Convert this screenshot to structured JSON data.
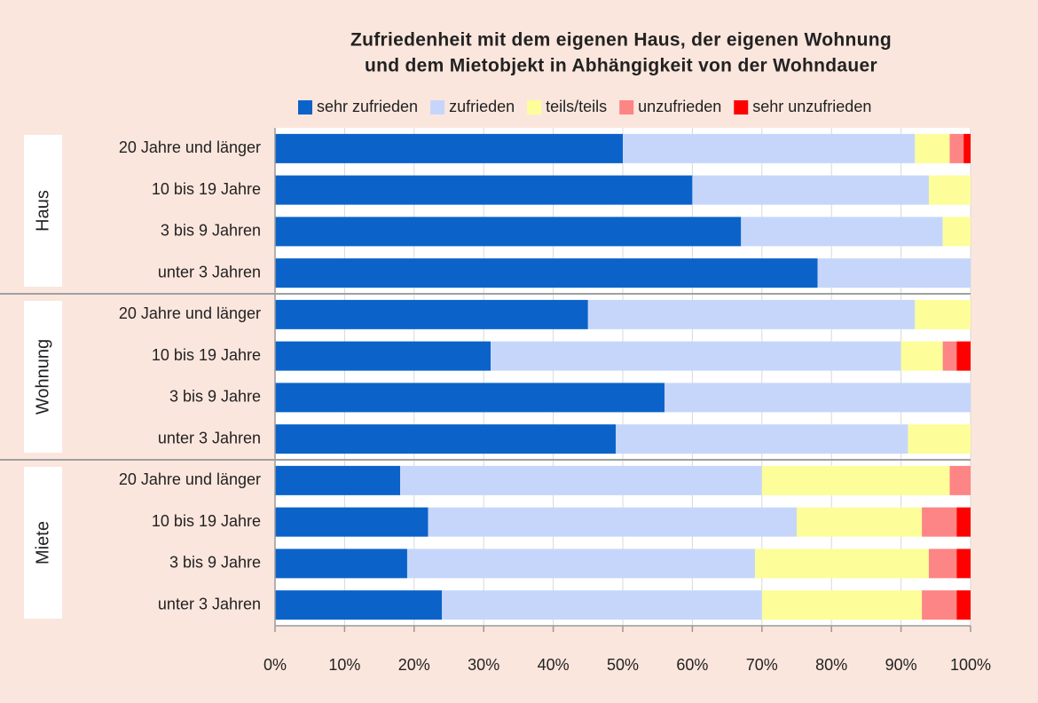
{
  "chart_data": {
    "type": "stacked_bar_horizontal",
    "title": [
      "Zufriedenheit mit dem eigenen Haus, der eigenen Wohnung",
      "und dem Mietobjekt in Abhängigkeit von der Wohndauer"
    ],
    "groups": [
      "Haus",
      "Wohnung",
      "Miete"
    ],
    "categories": [
      "20 Jahre und länger",
      "10 bis 19 Jahre",
      "3 bis 9 Jahren",
      "unter 3 Jahren",
      "20 Jahre und länger",
      "10 bis 19 Jahre",
      "3 bis 9 Jahre",
      "unter 3 Jahren",
      "20 Jahre und länger",
      "10 bis 19 Jahre",
      "3 bis 9 Jahre",
      "unter 3 Jahren"
    ],
    "series": [
      {
        "name": "sehr zufrieden",
        "color": "#0b63c9",
        "values": [
          50,
          60,
          67,
          78,
          45,
          31,
          56,
          49,
          18,
          22,
          19,
          24
        ]
      },
      {
        "name": "zufrieden",
        "color": "#c6d6fb",
        "values": [
          42,
          34,
          29,
          22,
          47,
          59,
          44,
          42,
          52,
          53,
          50,
          46
        ]
      },
      {
        "name": "teils/teils",
        "color": "#fdfd99",
        "values": [
          5,
          6,
          4,
          0,
          8,
          6,
          0,
          9,
          27,
          18,
          25,
          23
        ]
      },
      {
        "name": "unzufrieden",
        "color": "#fd8585",
        "values": [
          2,
          0,
          0,
          0,
          0,
          2,
          0,
          0,
          3,
          5,
          4,
          5
        ]
      },
      {
        "name": "sehr unzufrieden",
        "color": "#fe0000",
        "values": [
          1,
          0,
          0,
          0,
          0,
          2,
          0,
          0,
          0,
          2,
          2,
          2
        ]
      }
    ],
    "xlim": [
      0,
      100
    ],
    "xticks": [
      {
        "value": 0,
        "label": "0%"
      },
      {
        "value": 10,
        "label": "10%"
      },
      {
        "value": 20,
        "label": "20%"
      },
      {
        "value": 30,
        "label": "30%"
      },
      {
        "value": 40,
        "label": "40%"
      },
      {
        "value": 50,
        "label": "50%"
      },
      {
        "value": 60,
        "label": "60%"
      },
      {
        "value": 70,
        "label": "70%"
      },
      {
        "value": 80,
        "label": "80%"
      },
      {
        "value": 90,
        "label": "90%"
      },
      {
        "value": 100,
        "label": "100%"
      }
    ],
    "grid": true,
    "legend": "top"
  }
}
